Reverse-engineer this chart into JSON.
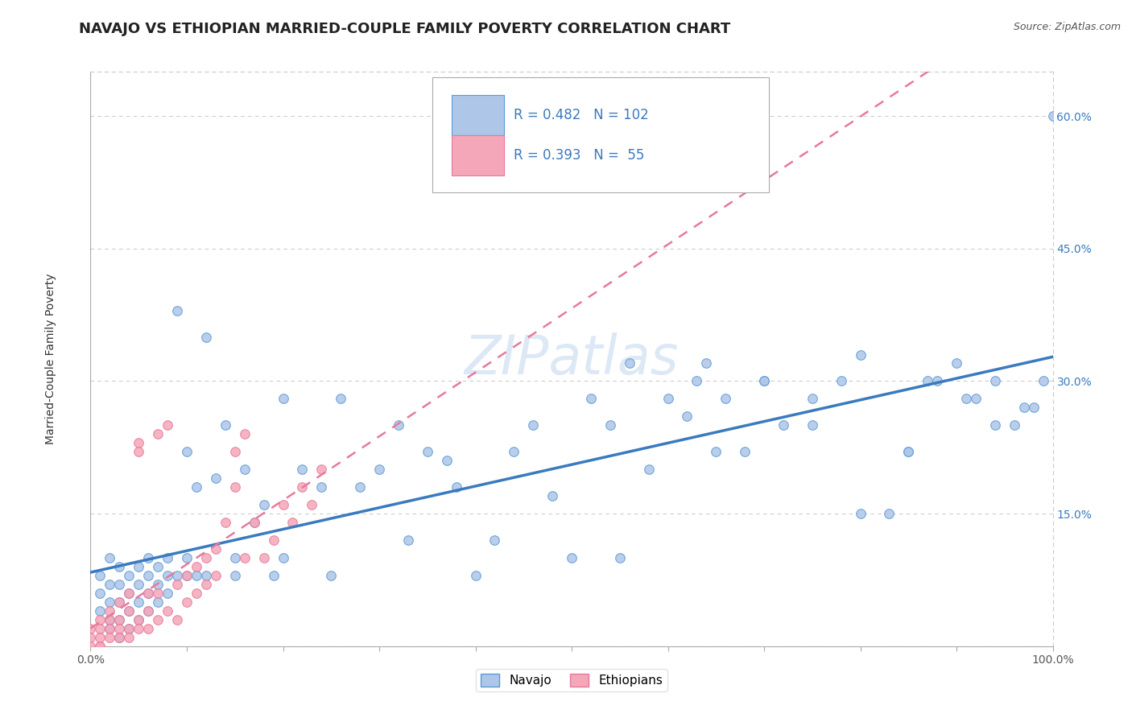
{
  "title": "NAVAJO VS ETHIOPIAN MARRIED-COUPLE FAMILY POVERTY CORRELATION CHART",
  "source": "Source: ZipAtlas.com",
  "ylabel": "Married-Couple Family Poverty",
  "xlim": [
    0,
    1.0
  ],
  "ylim": [
    0,
    0.65
  ],
  "xticks": [
    0.0,
    0.1,
    0.2,
    0.3,
    0.4,
    0.5,
    0.6,
    0.7,
    0.8,
    0.9,
    1.0
  ],
  "xticklabels": [
    "0.0%",
    "",
    "",
    "",
    "",
    "",
    "",
    "",
    "",
    "",
    "100.0%"
  ],
  "yticks": [
    0.0,
    0.15,
    0.3,
    0.45,
    0.6
  ],
  "yticklabels": [
    "",
    "15.0%",
    "30.0%",
    "45.0%",
    "60.0%"
  ],
  "navajo_R": 0.482,
  "navajo_N": 102,
  "ethiopian_R": 0.393,
  "ethiopian_N": 55,
  "navajo_color": "#aec6e8",
  "ethiopian_color": "#f4a7b9",
  "navajo_edge_color": "#5b9bd5",
  "ethiopian_edge_color": "#e8799a",
  "navajo_line_color": "#3a7abf",
  "ethiopian_line_color": "#e8799a",
  "grid_color": "#cccccc",
  "watermark": "ZIPatlas",
  "legend_text_color": "#3a7abf",
  "background_color": "#ffffff",
  "title_fontsize": 13,
  "axis_fontsize": 10,
  "watermark_fontsize": 48,
  "watermark_color": "#dce8f5",
  "marker_size": 70,
  "navajo_x": [
    0.01,
    0.01,
    0.01,
    0.02,
    0.02,
    0.02,
    0.02,
    0.02,
    0.03,
    0.03,
    0.03,
    0.03,
    0.03,
    0.04,
    0.04,
    0.04,
    0.04,
    0.05,
    0.05,
    0.05,
    0.05,
    0.06,
    0.06,
    0.06,
    0.06,
    0.07,
    0.07,
    0.07,
    0.08,
    0.08,
    0.08,
    0.09,
    0.09,
    0.1,
    0.1,
    0.1,
    0.11,
    0.11,
    0.12,
    0.12,
    0.13,
    0.14,
    0.15,
    0.15,
    0.16,
    0.17,
    0.18,
    0.19,
    0.2,
    0.2,
    0.22,
    0.24,
    0.25,
    0.26,
    0.28,
    0.3,
    0.32,
    0.33,
    0.35,
    0.37,
    0.38,
    0.4,
    0.42,
    0.44,
    0.46,
    0.48,
    0.5,
    0.52,
    0.54,
    0.56,
    0.58,
    0.6,
    0.62,
    0.64,
    0.66,
    0.68,
    0.7,
    0.72,
    0.75,
    0.78,
    0.8,
    0.83,
    0.85,
    0.87,
    0.9,
    0.92,
    0.94,
    0.96,
    0.98,
    1.0,
    0.63,
    0.65,
    0.7,
    0.75,
    0.8,
    0.85,
    0.88,
    0.91,
    0.94,
    0.97,
    0.99,
    0.55
  ],
  "navajo_y": [
    0.08,
    0.06,
    0.04,
    0.1,
    0.07,
    0.05,
    0.03,
    0.02,
    0.09,
    0.07,
    0.05,
    0.03,
    0.01,
    0.08,
    0.06,
    0.04,
    0.02,
    0.09,
    0.07,
    0.05,
    0.03,
    0.1,
    0.08,
    0.06,
    0.04,
    0.09,
    0.07,
    0.05,
    0.1,
    0.08,
    0.06,
    0.38,
    0.08,
    0.22,
    0.1,
    0.08,
    0.18,
    0.08,
    0.35,
    0.08,
    0.19,
    0.25,
    0.1,
    0.08,
    0.2,
    0.14,
    0.16,
    0.08,
    0.28,
    0.1,
    0.2,
    0.18,
    0.08,
    0.28,
    0.18,
    0.2,
    0.25,
    0.12,
    0.22,
    0.21,
    0.18,
    0.08,
    0.12,
    0.22,
    0.25,
    0.17,
    0.1,
    0.28,
    0.25,
    0.32,
    0.2,
    0.28,
    0.26,
    0.32,
    0.28,
    0.22,
    0.3,
    0.25,
    0.28,
    0.3,
    0.33,
    0.15,
    0.22,
    0.3,
    0.32,
    0.28,
    0.3,
    0.25,
    0.27,
    0.6,
    0.3,
    0.22,
    0.3,
    0.25,
    0.15,
    0.22,
    0.3,
    0.28,
    0.25,
    0.27,
    0.3,
    0.1
  ],
  "ethiopian_x": [
    0.0,
    0.0,
    0.0,
    0.01,
    0.01,
    0.01,
    0.01,
    0.01,
    0.02,
    0.02,
    0.02,
    0.02,
    0.03,
    0.03,
    0.03,
    0.03,
    0.04,
    0.04,
    0.04,
    0.04,
    0.05,
    0.05,
    0.05,
    0.05,
    0.06,
    0.06,
    0.06,
    0.07,
    0.07,
    0.07,
    0.08,
    0.08,
    0.09,
    0.09,
    0.1,
    0.1,
    0.11,
    0.11,
    0.12,
    0.12,
    0.13,
    0.13,
    0.14,
    0.15,
    0.16,
    0.17,
    0.18,
    0.19,
    0.2,
    0.21,
    0.22,
    0.23,
    0.24,
    0.15,
    0.16
  ],
  "ethiopian_y": [
    0.02,
    0.01,
    0.0,
    0.03,
    0.02,
    0.01,
    0.0,
    0.0,
    0.04,
    0.03,
    0.02,
    0.01,
    0.05,
    0.03,
    0.02,
    0.01,
    0.06,
    0.04,
    0.02,
    0.01,
    0.23,
    0.22,
    0.03,
    0.02,
    0.06,
    0.04,
    0.02,
    0.24,
    0.06,
    0.03,
    0.25,
    0.04,
    0.07,
    0.03,
    0.08,
    0.05,
    0.09,
    0.06,
    0.1,
    0.07,
    0.11,
    0.08,
    0.14,
    0.18,
    0.1,
    0.14,
    0.1,
    0.12,
    0.16,
    0.14,
    0.18,
    0.16,
    0.2,
    0.22,
    0.24
  ]
}
